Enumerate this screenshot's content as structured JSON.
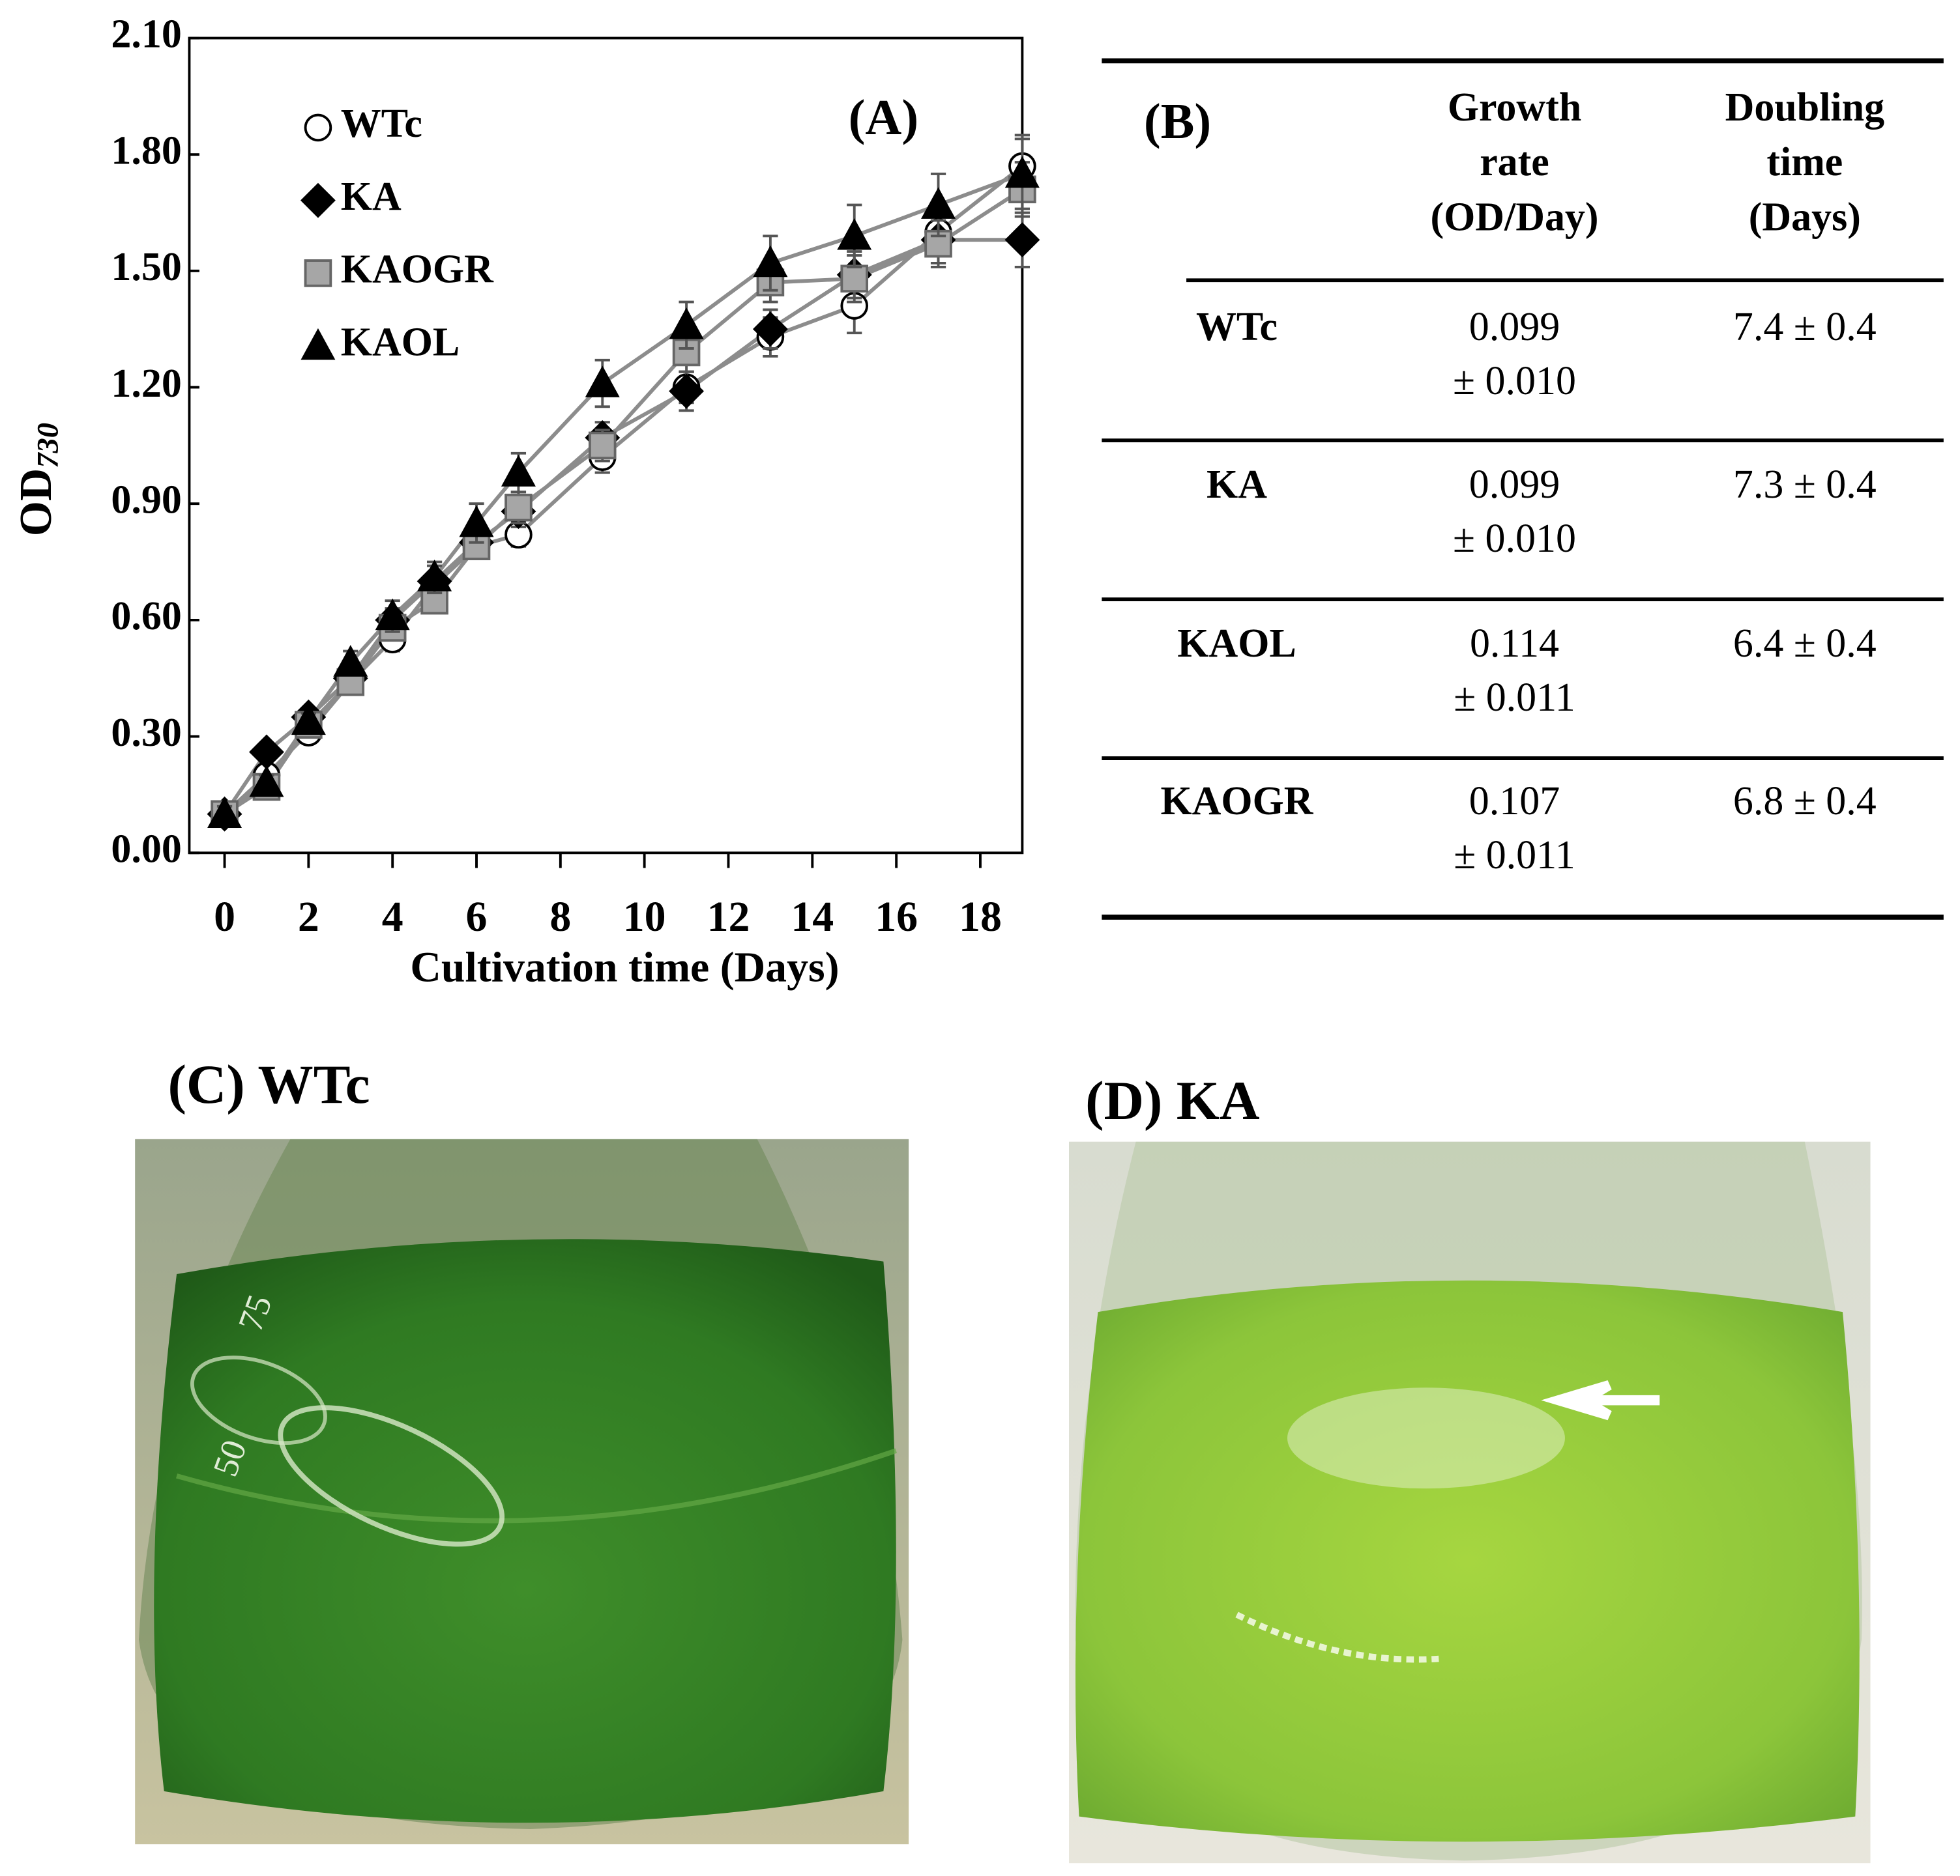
{
  "chart_data": {
    "type": "scatter",
    "label": "(A)",
    "x_label": "Cultivation time (Days)",
    "y_label": {
      "text": "OD",
      "subscript": "730"
    },
    "x": [
      0,
      1,
      2,
      3,
      4,
      5,
      6,
      7,
      9,
      11,
      13,
      15,
      17,
      19
    ],
    "series": [
      {
        "name": "WTc",
        "marker": "circle",
        "color": "#ffffff",
        "values": [
          0.1,
          0.2,
          0.31,
          0.44,
          0.55,
          0.69,
          0.79,
          0.82,
          1.02,
          1.2,
          1.33,
          1.41,
          1.6,
          1.77
        ],
        "errors": [
          0.02,
          0.02,
          0.02,
          0.02,
          0.03,
          0.03,
          0.03,
          0.03,
          0.04,
          0.04,
          0.05,
          0.07,
          0.06,
          0.08
        ]
      },
      {
        "name": "KA",
        "marker": "diamond",
        "color": "#000000",
        "values": [
          0.1,
          0.26,
          0.35,
          0.45,
          0.6,
          0.7,
          0.8,
          0.88,
          1.07,
          1.19,
          1.35,
          1.49,
          1.58,
          1.58
        ],
        "errors": [
          0.02,
          0.02,
          0.02,
          0.03,
          0.03,
          0.04,
          0.04,
          0.04,
          0.04,
          0.05,
          0.05,
          0.06,
          0.06,
          0.07
        ]
      },
      {
        "name": "KAOGR",
        "marker": "square",
        "color": "#a6a6a6",
        "values": [
          0.1,
          0.17,
          0.33,
          0.44,
          0.58,
          0.65,
          0.79,
          0.89,
          1.05,
          1.29,
          1.47,
          1.48,
          1.57,
          1.71
        ],
        "errors": [
          0.02,
          0.02,
          0.02,
          0.02,
          0.03,
          0.03,
          0.03,
          0.04,
          0.04,
          0.05,
          0.05,
          0.06,
          0.06,
          0.07
        ]
      },
      {
        "name": "KAOL",
        "marker": "triangle",
        "color": "#000000",
        "values": [
          0.1,
          0.18,
          0.34,
          0.49,
          0.61,
          0.71,
          0.85,
          0.98,
          1.21,
          1.36,
          1.52,
          1.59,
          1.67,
          1.75
        ],
        "errors": [
          0.02,
          0.02,
          0.02,
          0.03,
          0.04,
          0.04,
          0.05,
          0.05,
          0.06,
          0.06,
          0.07,
          0.08,
          0.08,
          0.09
        ]
      }
    ],
    "line_color": "#8c8c8c",
    "xlim": [
      -0.84,
      19
    ],
    "xticks": [
      0,
      2,
      4,
      6,
      8,
      10,
      12,
      14,
      16,
      18
    ],
    "ylim": [
      0,
      2.1
    ],
    "yticks": [
      {
        "value": 0,
        "label": "0.00"
      },
      {
        "value": 0.3,
        "label": "0.30"
      },
      {
        "value": 0.6,
        "label": "0.60"
      },
      {
        "value": 0.9,
        "label": "0.90"
      },
      {
        "value": 1.2,
        "label": "1.20"
      },
      {
        "value": 1.5,
        "label": "1.50"
      },
      {
        "value": 1.8,
        "label": "1.80"
      },
      {
        "value": 2.1,
        "label": "2.10"
      }
    ],
    "legend": "upper left"
  },
  "table": {
    "label": "(B)",
    "columns": [
      [
        "Growth",
        "rate",
        "(OD/Day)"
      ],
      [
        "Doubling",
        "time",
        "(Days)"
      ]
    ],
    "rows": [
      {
        "name": "WTc",
        "growth": [
          "0.099",
          "± 0.010"
        ],
        "doubling": "7.4 ± 0.4"
      },
      {
        "name": "KA",
        "growth": [
          "0.099",
          "± 0.010"
        ],
        "doubling": "7.3 ± 0.4"
      },
      {
        "name": "KAOL",
        "growth": [
          "0.114",
          "± 0.011"
        ],
        "doubling": "6.4 ± 0.4"
      },
      {
        "name": "KAOGR",
        "growth": [
          "0.107",
          "± 0.011"
        ],
        "doubling": "6.8 ± 0.4"
      }
    ]
  },
  "photos": [
    {
      "label": "(C) WTc",
      "glass_marks": [
        "75",
        "50"
      ]
    },
    {
      "label": "(D) KA"
    }
  ]
}
